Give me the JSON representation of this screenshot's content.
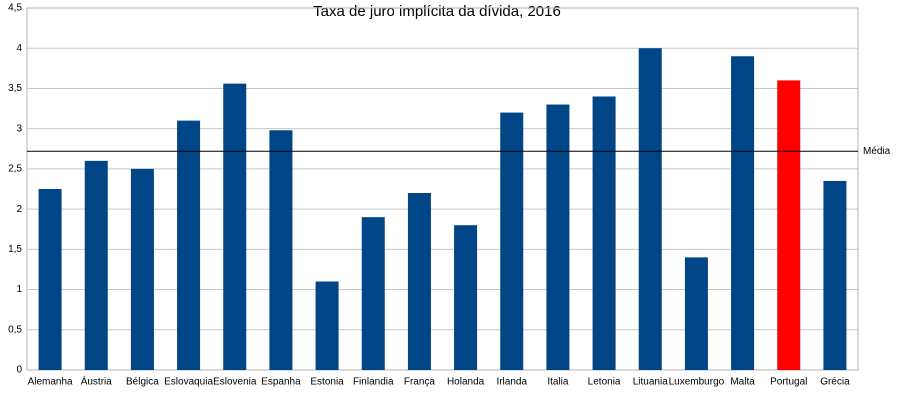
{
  "chart_data": {
    "type": "bar",
    "title": "Taxa de juro implícita da dívida, 2016",
    "categories": [
      "Alemanha",
      "Áustria",
      "Bélgica",
      "Eslovaquia",
      "Eslovenia",
      "Espanha",
      "Estonia",
      "Finlandia",
      "França",
      "Holanda",
      "Irlanda",
      "Italia",
      "Letonia",
      "Lituania",
      "Luxemburgo",
      "Malta",
      "Portugal",
      "Grécia"
    ],
    "values": [
      2.25,
      2.6,
      2.5,
      3.1,
      3.56,
      2.98,
      1.1,
      1.9,
      2.2,
      1.8,
      3.2,
      3.3,
      3.4,
      4.0,
      1.4,
      3.9,
      3.6,
      2.35
    ],
    "colors": [
      "#004586",
      "#004586",
      "#004586",
      "#004586",
      "#004586",
      "#004586",
      "#004586",
      "#004586",
      "#004586",
      "#004586",
      "#004586",
      "#004586",
      "#004586",
      "#004586",
      "#004586",
      "#004586",
      "#ff0000",
      "#004586"
    ],
    "ylim": [
      0,
      4.5
    ],
    "yticks": [
      0,
      {
        "value": 0.5,
        "label": "0,5"
      },
      1,
      {
        "value": 1.5,
        "label": "1,5"
      },
      2,
      {
        "value": 2.5,
        "label": "2,5"
      },
      3,
      {
        "value": 3.5,
        "label": "3,5"
      },
      4,
      {
        "value": 4.5,
        "label": "4,5"
      }
    ],
    "grid": true,
    "reference_line": {
      "value": 2.72,
      "label": "Média"
    }
  }
}
